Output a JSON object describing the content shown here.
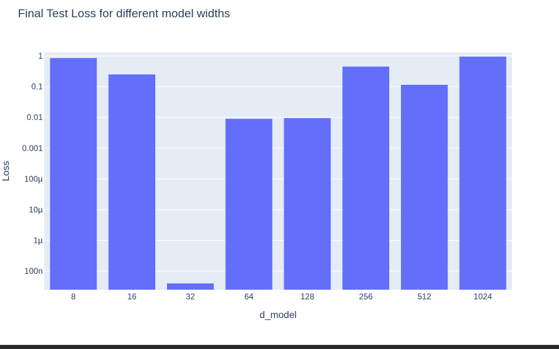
{
  "chart_data": {
    "type": "bar",
    "title": "Final Test Loss for different model widths",
    "xlabel": "d_model",
    "ylabel": "Loss",
    "y_scale": "log",
    "categories": [
      "8",
      "16",
      "32",
      "64",
      "128",
      "256",
      "512",
      "1024"
    ],
    "values": [
      0.85,
      0.25,
      4e-08,
      0.009,
      0.0095,
      0.45,
      0.115,
      0.95
    ],
    "y_ticks": [
      1e-07,
      1e-06,
      1e-05,
      0.0001,
      0.001,
      0.01,
      0.1,
      1
    ],
    "y_tick_labels": [
      "100n",
      "1µ",
      "10µ",
      "100µ",
      "0.001",
      "0.01",
      "0.1",
      "1"
    ],
    "ylim": [
      2.5e-08,
      1.3
    ],
    "grid": true,
    "legend": "none",
    "colors": {
      "bar": "#636efa",
      "plot_bg": "#e5ecf6",
      "grid": "#ffffff",
      "text": "#2a3f5f"
    }
  }
}
